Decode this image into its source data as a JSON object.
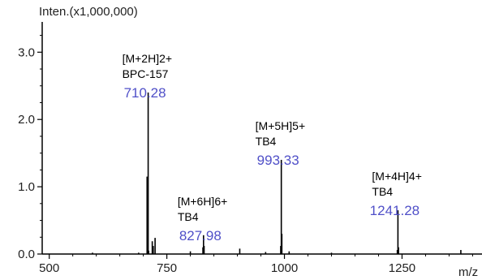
{
  "chart_data": {
    "type": "bar",
    "ylabel": "Inten.(x1,000,000)",
    "xlabel": "m/z",
    "xlim": [
      485,
      1420
    ],
    "ylim": [
      0,
      3.45
    ],
    "x_ticks": [
      500,
      750,
      1000,
      1250
    ],
    "x_tick_labels": [
      "500",
      "750",
      "1000",
      "1250"
    ],
    "y_ticks": [
      0,
      1,
      2,
      3
    ],
    "y_tick_labels": [
      "0.0",
      "1.0",
      "2.0",
      "3.0"
    ],
    "grid": false,
    "colors": {
      "bars": "#000000",
      "mz_labels": "#5050c8",
      "ion_labels": "#000000",
      "axes": "#000000"
    },
    "peaks": [
      {
        "mz": 592,
        "intensity": 0.02
      },
      {
        "mz": 690,
        "intensity": 0.02
      },
      {
        "mz": 708,
        "intensity": 1.15
      },
      {
        "mz": 710.28,
        "intensity": 2.4
      },
      {
        "mz": 711.3,
        "intensity": 0.05
      },
      {
        "mz": 719,
        "intensity": 0.19
      },
      {
        "mz": 721,
        "intensity": 0.12
      },
      {
        "mz": 725,
        "intensity": 0.24
      },
      {
        "mz": 800,
        "intensity": 0.04
      },
      {
        "mz": 826.7,
        "intensity": 0.1
      },
      {
        "mz": 827.98,
        "intensity": 0.28
      },
      {
        "mz": 829.2,
        "intensity": 0.12
      },
      {
        "mz": 905,
        "intensity": 0.08
      },
      {
        "mz": 960,
        "intensity": 0.03
      },
      {
        "mz": 992.1,
        "intensity": 0.12
      },
      {
        "mz": 993.33,
        "intensity": 1.4
      },
      {
        "mz": 994.5,
        "intensity": 0.3
      },
      {
        "mz": 1010,
        "intensity": 0.04
      },
      {
        "mz": 1100,
        "intensity": 0.02
      },
      {
        "mz": 1240,
        "intensity": 0.06
      },
      {
        "mz": 1241.28,
        "intensity": 0.65
      },
      {
        "mz": 1242.5,
        "intensity": 0.1
      },
      {
        "mz": 1375,
        "intensity": 0.06
      }
    ],
    "annotations": [
      {
        "mz": 710.28,
        "mz_label": "710.28",
        "ion": "[M+2H]2+",
        "species": "BPC-157"
      },
      {
        "mz": 827.98,
        "mz_label": "827.98",
        "ion": "[M+6H]6+",
        "species": "TB4"
      },
      {
        "mz": 993.33,
        "mz_label": "993.33",
        "ion": "[M+5H]5+",
        "species": "TB4"
      },
      {
        "mz": 1241.28,
        "mz_label": "1241.28",
        "ion": "[M+4H]4+",
        "species": "TB4"
      }
    ]
  }
}
